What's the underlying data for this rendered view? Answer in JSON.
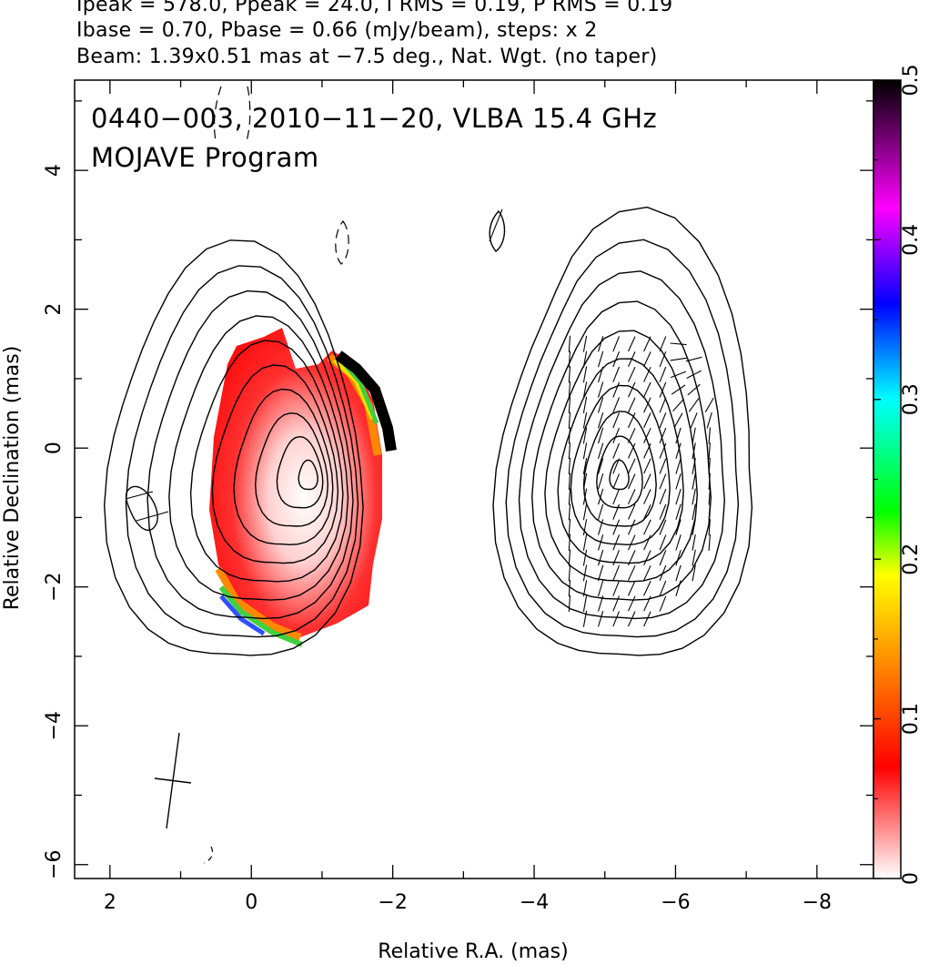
{
  "header": {
    "line1": "Ipeak = 578.0, Ppeak = 24.0, I RMS = 0.19, P RMS = 0.19",
    "line2": "Ibase = 0.70, Pbase = 0.66 (mJy/beam), steps: x 2",
    "line3": "Beam: 1.39x0.51 mas at −7.5 deg., Nat. Wgt. (no taper)"
  },
  "chart_data": {
    "type": "heatmap",
    "title": "0440−003, 2010−11−20, VLBA 15.4 GHz",
    "subtitle": "MOJAVE Program",
    "xlabel": "Relative R.A. (mas)",
    "ylabel": "Relative Declination (mas)",
    "xlim": [
      2.5,
      -8.8
    ],
    "ylim": [
      -6.2,
      5.3
    ],
    "x_ticks": [
      2,
      0,
      -2,
      -4,
      -6,
      -8
    ],
    "x_tick_labels": [
      "2",
      "0",
      "−2",
      "−4",
      "−6",
      "−8"
    ],
    "y_ticks": [
      4,
      2,
      0,
      -2,
      -4,
      -6
    ],
    "y_tick_labels": [
      "4",
      "2",
      "0",
      "−2",
      "−4",
      "−6"
    ],
    "colorbar": {
      "range": [
        0,
        0.5
      ],
      "ticks": [
        0,
        0.1,
        0.2,
        0.3,
        0.4,
        0.5
      ],
      "tick_labels": [
        "0",
        "0.1",
        "0.2",
        "0.3",
        "0.4",
        "0.5"
      ],
      "colors": [
        "#ffffff",
        "#ff0000",
        "#ff8000",
        "#ffff00",
        "#00ff00",
        "#00ffff",
        "#0000ff",
        "#ff00ff",
        "#000000"
      ]
    },
    "panels": [
      {
        "name": "",
        "center": [
          0.3,
          -0.3
        ],
        "peak": [
          -0.8,
          -0.4
        ],
        "shows": "fractional polarization colour map"
      },
      {
        "name": "",
        "center": [
          -5.2,
          -0.3
        ],
        "peak": [
          -5.2,
          -0.4
        ],
        "shows": "EVPA ticks"
      }
    ],
    "contour_levels_mjy": [
      0.7,
      1.4,
      2.8,
      5.6,
      11.2,
      22.4,
      44.8,
      89.6,
      179.2,
      358.4
    ],
    "beam": {
      "major_mas": 1.39,
      "minor_mas": 0.51,
      "pa_deg": -7.5,
      "position": [
        1.2,
        -4.6
      ]
    }
  }
}
